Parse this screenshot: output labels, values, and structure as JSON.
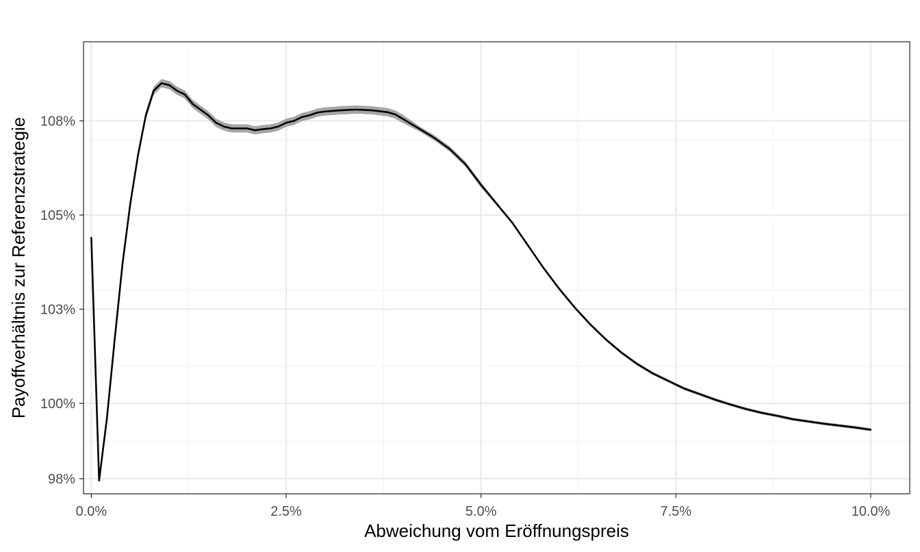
{
  "chart_data": {
    "type": "line",
    "title": "",
    "xlabel": "Abweichung vom Eröffnungspreis",
    "ylabel": "Payoffverhältnis zur Referenzstrategie",
    "xlim": [
      -0.1,
      10.5
    ],
    "ylim": [
      97.6,
      109.6
    ],
    "x_ticks": [
      0,
      2.5,
      5,
      7.5,
      10
    ],
    "x_tick_labels": [
      "0.0%",
      "2.5%",
      "5.0%",
      "7.5%",
      "10.0%"
    ],
    "y_ticks": [
      98,
      100,
      103,
      105,
      108
    ],
    "y_tick_labels": [
      "98%",
      "100%",
      "103%",
      "105%",
      "108%"
    ],
    "y_tick_values_actual": [
      98,
      100,
      102.5,
      105,
      107.5
    ],
    "grid": true,
    "legend": "none",
    "colors": {
      "line": "#000000",
      "ribbon": "#a6a6a6",
      "grid_major": "#ebebeb",
      "grid_minor": "#f2f2f2",
      "panel_border": "#333333",
      "tick_label": "#4d4d4d"
    },
    "series": [
      {
        "x": [
          0.0,
          0.1,
          0.2,
          0.3,
          0.4,
          0.5,
          0.6,
          0.7,
          0.8,
          0.9,
          1.0,
          1.1,
          1.2,
          1.3,
          1.4,
          1.5,
          1.6,
          1.7,
          1.8,
          1.9,
          2.0,
          2.1,
          2.2,
          2.3,
          2.4,
          2.5,
          2.6,
          2.7,
          2.8,
          2.9,
          3.0,
          3.2,
          3.4,
          3.6,
          3.8,
          3.9,
          4.0,
          4.2,
          4.4,
          4.6,
          4.8,
          5.0,
          5.2,
          5.4,
          5.6,
          5.8,
          6.0,
          6.2,
          6.4,
          6.6,
          6.8,
          7.0,
          7.2,
          7.4,
          7.6,
          7.8,
          8.0,
          8.2,
          8.4,
          8.6,
          8.8,
          9.0,
          9.2,
          9.4,
          9.6,
          9.8,
          10.0
        ],
        "y": [
          104.4,
          97.95,
          99.6,
          101.7,
          103.7,
          105.3,
          106.6,
          107.65,
          108.3,
          108.5,
          108.45,
          108.3,
          108.2,
          107.95,
          107.8,
          107.65,
          107.45,
          107.35,
          107.3,
          107.3,
          107.3,
          107.25,
          107.28,
          107.3,
          107.35,
          107.45,
          107.5,
          107.6,
          107.65,
          107.72,
          107.75,
          107.78,
          107.8,
          107.78,
          107.73,
          107.67,
          107.55,
          107.3,
          107.05,
          106.75,
          106.35,
          105.8,
          105.3,
          104.8,
          104.2,
          103.6,
          103.05,
          102.55,
          102.1,
          101.7,
          101.35,
          101.05,
          100.8,
          100.6,
          100.4,
          100.25,
          100.1,
          99.97,
          99.85,
          99.75,
          99.67,
          99.58,
          99.52,
          99.46,
          99.41,
          99.36,
          99.3
        ]
      }
    ]
  }
}
